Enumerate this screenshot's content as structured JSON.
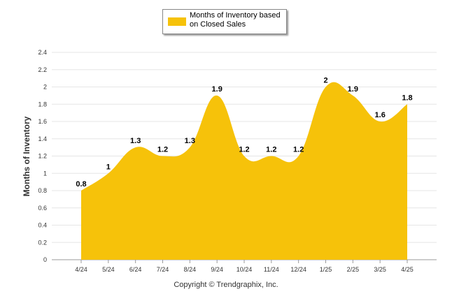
{
  "legend": {
    "label": "Months of Inventory based on Closed Sales"
  },
  "footer": {
    "copyright": "Copyright © Trendgraphix, Inc."
  },
  "colors": {
    "fill": "#f6c20a",
    "grid": "#e6e6e6",
    "axis": "#999999"
  },
  "chart_data": {
    "type": "area",
    "categories": [
      "4/24",
      "5/24",
      "6/24",
      "7/24",
      "8/24",
      "9/24",
      "10/24",
      "11/24",
      "12/24",
      "1/25",
      "2/25",
      "3/25",
      "4/25"
    ],
    "series": [
      {
        "name": "Months of Inventory based on Closed Sales",
        "values": [
          0.8,
          1,
          1.3,
          1.2,
          1.3,
          1.9,
          1.2,
          1.2,
          1.2,
          2,
          1.9,
          1.6,
          1.8
        ]
      }
    ],
    "data_labels": [
      "0.8",
      "1",
      "1.3",
      "1.2",
      "1.3",
      "1.9",
      "1.2",
      "1.2",
      "1.2",
      "2",
      "1.9",
      "1.6",
      "1.8"
    ],
    "ylabel": "Months of Inventory",
    "xlabel": "",
    "ylim": [
      0,
      2.4
    ],
    "yticks": [
      "0",
      "0.2",
      "0.4",
      "0.6",
      "0.8",
      "1",
      "1.2",
      "1.4",
      "1.6",
      "1.8",
      "2",
      "2.2",
      "2.4"
    ],
    "grid": true,
    "legend_position": "top-center"
  }
}
